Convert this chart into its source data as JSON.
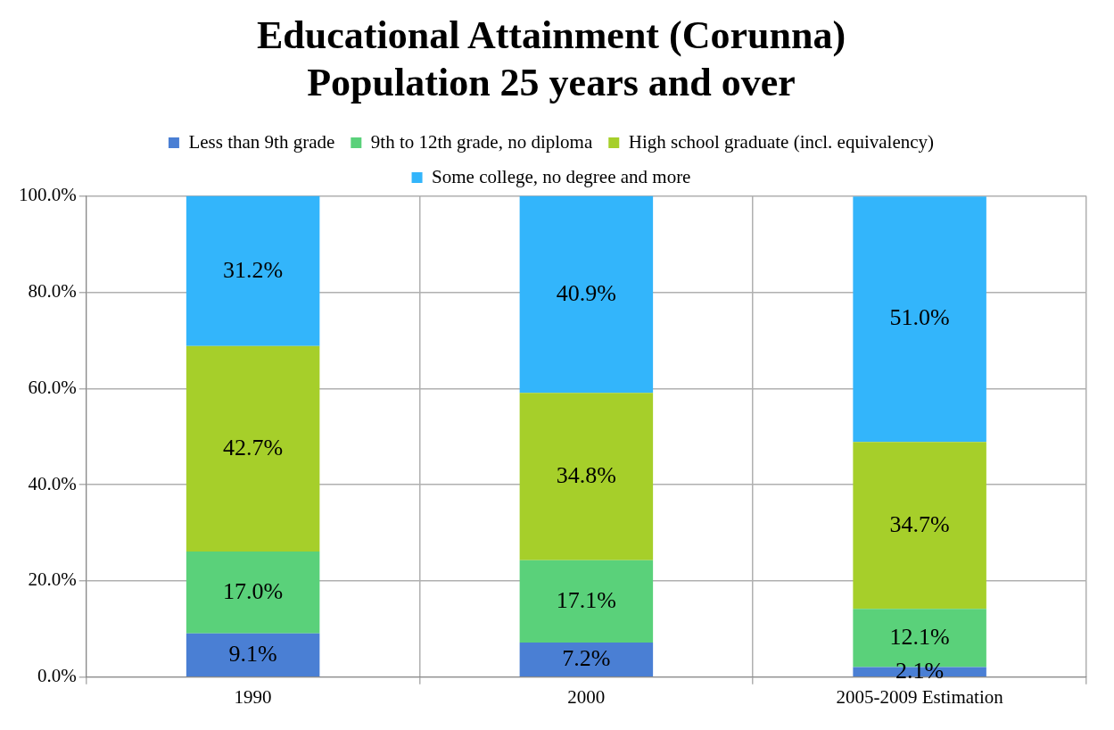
{
  "chart_data": {
    "type": "bar",
    "title": [
      "Educational Attainment (Corunna)",
      "Population 25 years and over"
    ],
    "categories": [
      "1990",
      "2000",
      "2005-2009 Estimation"
    ],
    "stacked": true,
    "series": [
      {
        "name": "Less than 9th grade",
        "color": "#4a7fd4",
        "values": [
          9.1,
          7.2,
          2.1
        ],
        "value_labels": [
          "9.1%",
          "7.2%",
          "2.1%"
        ]
      },
      {
        "name": "9th to 12th grade, no diploma",
        "color": "#5ad17a",
        "values": [
          17.0,
          17.1,
          12.1
        ],
        "value_labels": [
          "17.0%",
          "17.1%",
          "12.1%"
        ]
      },
      {
        "name": "High school graduate (incl. equivalency)",
        "color": "#a6cf2a",
        "values": [
          42.7,
          34.8,
          34.7
        ],
        "value_labels": [
          "42.7%",
          "34.8%",
          "34.7%"
        ]
      },
      {
        "name": "Some college, no degree and more",
        "color": "#33b5fb",
        "values": [
          31.2,
          40.9,
          51.0
        ],
        "value_labels": [
          "31.2%",
          "40.9%",
          "51.0%"
        ]
      }
    ],
    "ylim": [
      0,
      100
    ],
    "yticks": [
      {
        "value": 0,
        "label": "0.0%"
      },
      {
        "value": 20,
        "label": "20.0%"
      },
      {
        "value": 40,
        "label": "40.0%"
      },
      {
        "value": 60,
        "label": "60.0%"
      },
      {
        "value": 80,
        "label": "80.0%"
      },
      {
        "value": 100,
        "label": "100.0%"
      }
    ],
    "grid": true,
    "legend": "top"
  }
}
